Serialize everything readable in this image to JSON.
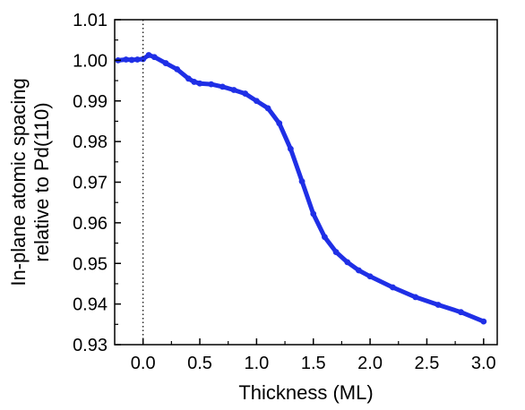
{
  "chart_data": {
    "type": "scatter",
    "xlabel": "Thickness (ML)",
    "ylabel_lines": [
      "In-plane atomic spacing",
      "relative to Pd(110)"
    ],
    "xlim": [
      -0.25,
      3.12
    ],
    "ylim": [
      0.93,
      1.01
    ],
    "xticks": [
      0.0,
      0.5,
      1.0,
      1.5,
      2.0,
      2.5,
      3.0
    ],
    "xtick_labels": [
      "0.0",
      "0.5",
      "1.0",
      "1.5",
      "2.0",
      "2.5",
      "3.0"
    ],
    "yticks": [
      0.93,
      0.94,
      0.95,
      0.96,
      0.97,
      0.98,
      0.99,
      1.0,
      1.01
    ],
    "ytick_labels": [
      "0.93",
      "0.94",
      "0.95",
      "0.96",
      "0.97",
      "0.98",
      "0.99",
      "1.00",
      "1.01"
    ],
    "reference_line": {
      "x": 0.0,
      "style": "dotted",
      "color": "#000000"
    },
    "marker_color": "#1f2fe6",
    "grid": false,
    "series": [
      {
        "points": [
          [
            -0.22,
            1.0
          ],
          [
            -0.15,
            1.0002
          ],
          [
            -0.1,
            1.0001
          ],
          [
            -0.05,
            1.0002
          ],
          [
            0.0,
            1.0003
          ],
          [
            0.05,
            1.0013
          ],
          [
            0.1,
            1.0008
          ],
          [
            0.2,
            0.9993
          ],
          [
            0.3,
            0.9978
          ],
          [
            0.4,
            0.9955
          ],
          [
            0.45,
            0.9947
          ],
          [
            0.5,
            0.9943
          ],
          [
            0.6,
            0.9941
          ],
          [
            0.7,
            0.9935
          ],
          [
            0.8,
            0.9927
          ],
          [
            0.9,
            0.9918
          ],
          [
            1.0,
            0.99
          ],
          [
            1.1,
            0.9882
          ],
          [
            1.2,
            0.9845
          ],
          [
            1.3,
            0.9782
          ],
          [
            1.4,
            0.9702
          ],
          [
            1.5,
            0.9622
          ],
          [
            1.6,
            0.9565
          ],
          [
            1.7,
            0.9528
          ],
          [
            1.8,
            0.9503
          ],
          [
            1.9,
            0.9483
          ],
          [
            2.0,
            0.9468
          ],
          [
            2.2,
            0.9441
          ],
          [
            2.4,
            0.9417
          ],
          [
            2.6,
            0.9398
          ],
          [
            2.8,
            0.938
          ],
          [
            3.0,
            0.9357
          ]
        ]
      }
    ]
  }
}
